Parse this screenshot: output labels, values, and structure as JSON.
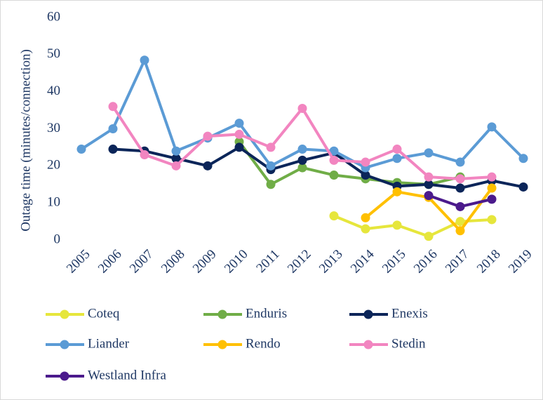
{
  "chart_data": {
    "type": "line",
    "y_label": "Outage time (minutes/connection)",
    "categories": [
      "2005",
      "2006",
      "2007",
      "2008",
      "2009",
      "2010",
      "2011",
      "2012",
      "2013",
      "2014",
      "2015",
      "2016",
      "2017",
      "2018",
      "2019"
    ],
    "ylim": [
      0,
      60
    ],
    "yticks": [
      0,
      10,
      20,
      30,
      40,
      50,
      60
    ],
    "grid": false,
    "legend": "bottom",
    "series": [
      {
        "name": "Coteq",
        "color": "#e6e63c",
        "values": [
          null,
          null,
          null,
          null,
          null,
          null,
          null,
          null,
          6.5,
          3,
          4,
          1,
          5,
          5.5,
          null
        ]
      },
      {
        "name": "Enduris",
        "color": "#70ad47",
        "values": [
          null,
          null,
          null,
          null,
          null,
          26.5,
          15,
          19.5,
          17.5,
          16.5,
          15.5,
          15,
          17,
          null,
          null
        ]
      },
      {
        "name": "Enexis",
        "color": "#0b2559",
        "values": [
          null,
          24.5,
          24,
          22,
          20,
          25,
          19,
          21.5,
          23.5,
          17.5,
          14.5,
          15,
          14,
          16,
          14.3
        ]
      },
      {
        "name": "Liander",
        "color": "#5b9bd5",
        "values": [
          24.5,
          30,
          48.5,
          24,
          27.5,
          31.5,
          20,
          24.5,
          24,
          19.5,
          22,
          23.5,
          21,
          30.5,
          22
        ]
      },
      {
        "name": "Rendo",
        "color": "#ffc000",
        "values": [
          null,
          null,
          null,
          null,
          null,
          null,
          null,
          null,
          null,
          6,
          13,
          11.5,
          2.5,
          14,
          null
        ]
      },
      {
        "name": "Stedin",
        "color": "#f285c0",
        "values": [
          null,
          36,
          23,
          20,
          28,
          28.5,
          25,
          35.5,
          21.5,
          21,
          24.5,
          17,
          16.5,
          17,
          null
        ]
      },
      {
        "name": "Westland Infra",
        "color": "#4b1a8c",
        "values": [
          null,
          null,
          null,
          null,
          null,
          null,
          null,
          null,
          null,
          null,
          null,
          12,
          9,
          11,
          null
        ]
      }
    ]
  }
}
